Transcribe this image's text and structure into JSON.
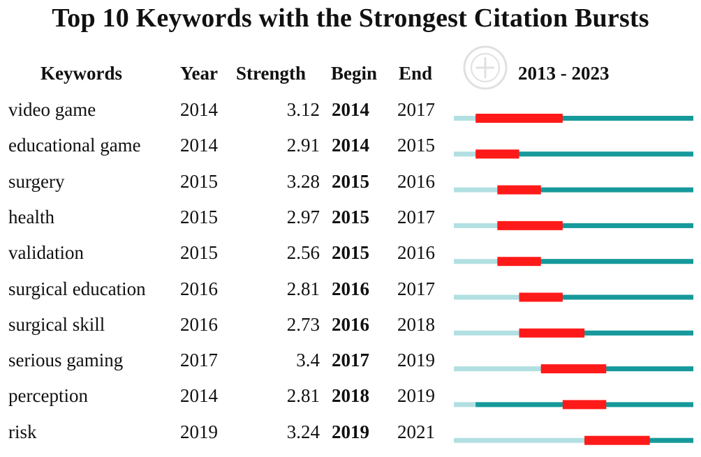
{
  "title": "Top 10 Keywords with the Strongest Citation Bursts",
  "headers": {
    "keywords": "Keywords",
    "year": "Year",
    "strength": "Strength",
    "begin": "Begin",
    "end": "End",
    "range": "2013 - 2023"
  },
  "colors": {
    "light_bar": "#b2e0e2",
    "active_bar": "#16999b",
    "burst_bar": "#ff1a1a"
  },
  "chart_data": {
    "type": "table",
    "timeline_start": 2013,
    "timeline_end": 2023,
    "rows": [
      {
        "keyword": "video game",
        "year": 2014,
        "strength": "3.12",
        "begin": 2014,
        "end": 2017
      },
      {
        "keyword": "educational game",
        "year": 2014,
        "strength": "2.91",
        "begin": 2014,
        "end": 2015
      },
      {
        "keyword": "surgery",
        "year": 2015,
        "strength": "3.28",
        "begin": 2015,
        "end": 2016
      },
      {
        "keyword": "health",
        "year": 2015,
        "strength": "2.97",
        "begin": 2015,
        "end": 2017
      },
      {
        "keyword": "validation",
        "year": 2015,
        "strength": "2.56",
        "begin": 2015,
        "end": 2016
      },
      {
        "keyword": "surgical education",
        "year": 2016,
        "strength": "2.81",
        "begin": 2016,
        "end": 2017
      },
      {
        "keyword": "surgical skill",
        "year": 2016,
        "strength": "2.73",
        "begin": 2016,
        "end": 2018
      },
      {
        "keyword": "serious gaming",
        "year": 2017,
        "strength": "3.4",
        "begin": 2017,
        "end": 2019
      },
      {
        "keyword": "perception",
        "year": 2014,
        "strength": "2.81",
        "begin": 2018,
        "end": 2019
      },
      {
        "keyword": "risk",
        "year": 2019,
        "strength": "3.24",
        "begin": 2019,
        "end": 2021
      }
    ]
  }
}
